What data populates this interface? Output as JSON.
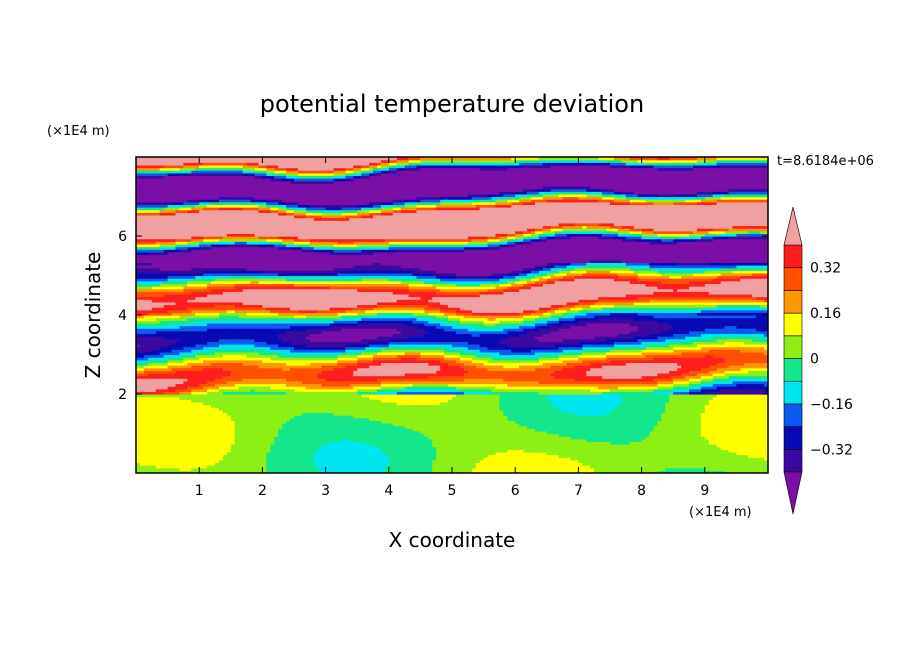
{
  "chart_data": {
    "type": "heatmap",
    "title": "potential temperature deviation",
    "xlabel": "X coordinate",
    "ylabel": "Z coordinate",
    "x_unit": "(×1E4 m)",
    "y_unit": "(×1E4 m)",
    "time_label": "t=8.6184e+06",
    "xlim": [
      0,
      10
    ],
    "ylim": [
      0,
      8
    ],
    "x_ticks": [
      1,
      2,
      3,
      4,
      5,
      6,
      7,
      8,
      9
    ],
    "y_ticks": [
      2,
      4,
      6
    ],
    "colorbar": {
      "levels": [
        -0.4,
        -0.32,
        -0.24,
        -0.16,
        -0.08,
        0,
        0.08,
        0.16,
        0.24,
        0.32,
        0.4
      ],
      "labeled_ticks": [
        "0.32",
        "0.16",
        "0",
        "−0.16",
        "−0.32"
      ],
      "labeled_values": [
        0.32,
        0.16,
        0,
        -0.16,
        -0.32
      ],
      "colors": [
        "#7a0fa6",
        "#3a0aa0",
        "#0a0ab4",
        "#0a5cf0",
        "#00e6f0",
        "#14e68c",
        "#8cf014",
        "#ffff00",
        "#ff9600",
        "#ff5000",
        "#ff1e1e",
        "#f0a0a0"
      ],
      "extend": "both"
    },
    "grid": false
  }
}
